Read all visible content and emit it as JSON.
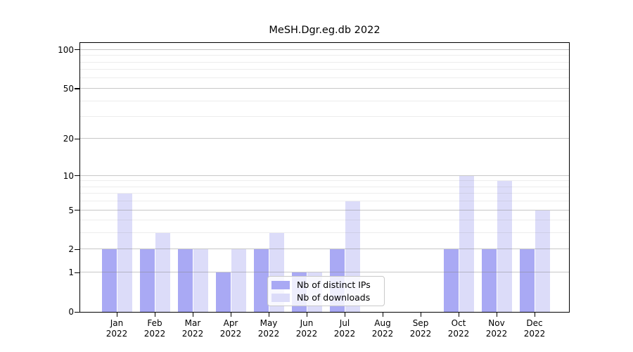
{
  "chart_data": {
    "type": "bar",
    "title": "MeSH.Dgr.eg.db 2022",
    "categories": [
      "Jan\n2022",
      "Feb\n2022",
      "Mar\n2022",
      "Apr\n2022",
      "May\n2022",
      "Jun\n2022",
      "Jul\n2022",
      "Aug\n2022",
      "Sep\n2022",
      "Oct\n2022",
      "Nov\n2022",
      "Dec\n2022"
    ],
    "series": [
      {
        "name": "Nb of distinct IPs",
        "color": "#a9a9f4",
        "values": [
          2,
          2,
          2,
          1,
          2,
          1,
          2,
          0,
          0,
          2,
          2,
          2
        ]
      },
      {
        "name": "Nb of downloads",
        "color": "#dcdcf9",
        "values": [
          7,
          3,
          2,
          2,
          3,
          1,
          6,
          0,
          0,
          10,
          9,
          5
        ]
      }
    ],
    "xlabel": "",
    "ylabel": "",
    "yscale": "log1p",
    "ylim": [
      0,
      113
    ],
    "yticks_major": [
      0,
      1,
      2,
      5,
      10,
      20,
      50,
      100
    ],
    "yticks_minor": [
      3,
      4,
      6,
      7,
      8,
      9,
      30,
      40,
      60,
      70,
      80,
      90
    ],
    "grid": true,
    "legend_position": "lower center",
    "colors": {
      "background": "#ffffff",
      "axis": "#000000",
      "text": "#000000",
      "grid_major": "#b5b5b5",
      "grid_minor": "#e9e9e9"
    }
  }
}
